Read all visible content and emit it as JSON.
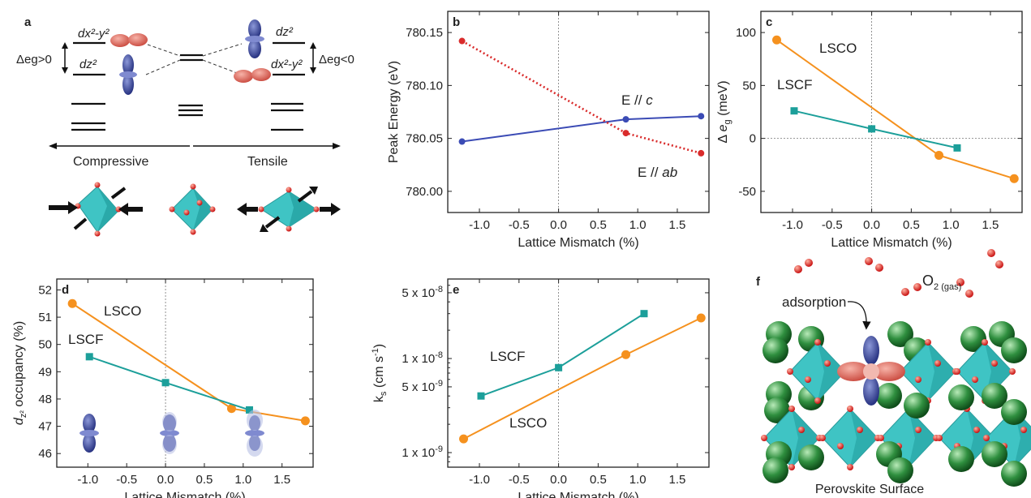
{
  "panels": {
    "a": {
      "label": "a",
      "dxy": "dx²-y²",
      "dz2": "dz²",
      "left_gap": "Δeg>0",
      "right_gap": "Δeg<0",
      "compressive": "Compressive",
      "tensile": "Tensile"
    },
    "f": {
      "label": "f",
      "adsorption": "adsorption",
      "gas": "O2 (gas)",
      "caption": "Perovskite Surface"
    }
  },
  "colors": {
    "blue": "#3b4bb5",
    "red": "#d92b2b",
    "orange": "#f5911e",
    "teal": "#1c9f9a",
    "octa": "#3fc4c4",
    "sphere": "#2f8f3f",
    "oxygen": "#e02020"
  },
  "chart_data": [
    {
      "id": "b",
      "type": "line",
      "panel_label": "b",
      "xlabel": "Lattice Mismatch (%)",
      "ylabel": "Peak Energy (eV)",
      "xlim": [
        -1.4,
        1.9
      ],
      "ylim": [
        779.98,
        780.17
      ],
      "xticks": [
        "-1.0",
        "-0.5",
        "0.0",
        "0.5",
        "1.0",
        "1.5"
      ],
      "yticks": [
        "780.00",
        "780.05",
        "780.10",
        "780.15"
      ],
      "series": [
        {
          "name": "E // c",
          "x": [
            -1.22,
            0.85,
            1.8
          ],
          "y": [
            780.047,
            780.068,
            780.071
          ],
          "color": "#3b4bb5",
          "dash": false,
          "marker": "circle"
        },
        {
          "name": "E // ab",
          "x": [
            -1.22,
            0.85,
            1.8
          ],
          "y": [
            780.142,
            780.055,
            780.036
          ],
          "color": "#d92b2b",
          "dash": true,
          "marker": "circle"
        }
      ]
    },
    {
      "id": "c",
      "type": "line",
      "panel_label": "c",
      "xlabel": "Lattice Mismatch (%)",
      "ylabel": "Δ eg (meV)",
      "xlim": [
        -1.4,
        1.9
      ],
      "ylim": [
        -70,
        120
      ],
      "xticks": [
        "-1.0",
        "-0.5",
        "0.0",
        "0.5",
        "1.0",
        "1.5"
      ],
      "yticks": [
        "-50",
        "0",
        "50",
        "100"
      ],
      "series": [
        {
          "name": "LSCO",
          "x": [
            -1.2,
            0.85,
            1.8
          ],
          "y": [
            93,
            -16,
            -38
          ],
          "color": "#f5911e",
          "marker": "circle"
        },
        {
          "name": "LSCF",
          "x": [
            -0.98,
            0.0,
            1.08
          ],
          "y": [
            26,
            9,
            -9
          ],
          "color": "#1c9f9a",
          "marker": "square"
        }
      ]
    },
    {
      "id": "d",
      "type": "line",
      "panel_label": "d",
      "xlabel": "Lattice Mismatch (%)",
      "ylabel": "dz² occupancy (%)",
      "xlim": [
        -1.4,
        1.9
      ],
      "ylim": [
        45.5,
        52.4
      ],
      "xticks": [
        "-1.0",
        "-0.5",
        "0.0",
        "0.5",
        "1.0",
        "1.5"
      ],
      "yticks": [
        "46",
        "47",
        "48",
        "49",
        "50",
        "51",
        "52"
      ],
      "series": [
        {
          "name": "LSCO",
          "x": [
            -1.2,
            0.85,
            1.8
          ],
          "y": [
            51.5,
            47.65,
            47.2
          ],
          "color": "#f5911e",
          "marker": "circle"
        },
        {
          "name": "LSCF",
          "x": [
            -0.98,
            0.0,
            1.08
          ],
          "y": [
            49.55,
            48.6,
            47.6
          ],
          "color": "#1c9f9a",
          "marker": "square"
        }
      ]
    },
    {
      "id": "e",
      "type": "line",
      "panel_label": "e",
      "log": true,
      "xlabel": "Lattice Mismatch (%)",
      "ylabel": "ks (cm s-1)",
      "xlim": [
        -1.4,
        1.9
      ],
      "ylim": [
        7e-10,
        7e-08
      ],
      "xticks": [
        "-1.0",
        "-0.5",
        "0.0",
        "0.5",
        "1.0",
        "1.5"
      ],
      "yticks": [
        {
          "v": 1e-09,
          "label": "1 x 10-9"
        },
        {
          "v": 5e-09,
          "label": "5 x 10-9"
        },
        {
          "v": 1e-08,
          "label": "1 x 10-8"
        },
        {
          "v": 5e-08,
          "label": "5 x 10-8"
        }
      ],
      "series": [
        {
          "name": "LSCO",
          "x": [
            -1.2,
            0.85,
            1.8
          ],
          "y": [
            1.4e-09,
            1.1e-08,
            2.7e-08
          ],
          "color": "#f5911e",
          "marker": "circle"
        },
        {
          "name": "LSCF",
          "x": [
            -0.98,
            0.0,
            1.08
          ],
          "y": [
            4e-09,
            8e-09,
            3e-08
          ],
          "color": "#1c9f9a",
          "marker": "square"
        }
      ]
    }
  ]
}
